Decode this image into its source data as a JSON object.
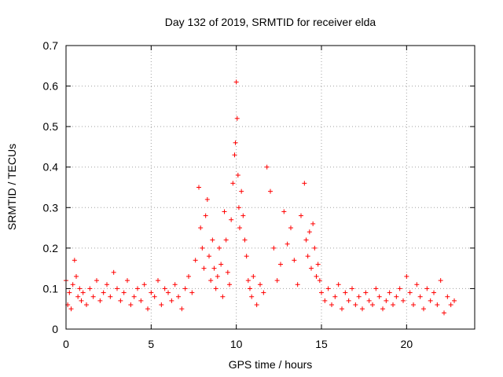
{
  "chart_data": {
    "type": "scatter",
    "title": "Day 132 of 2019, SRMTID for receiver elda",
    "xlabel": "GPS time / hours",
    "ylabel": "SRMTID / TECUs",
    "xlim": [
      0,
      24
    ],
    "ylim": [
      0,
      0.7
    ],
    "xticks": [
      0,
      5,
      10,
      15,
      20
    ],
    "yticks": [
      0,
      0.1,
      0.2,
      0.3,
      0.4,
      0.5,
      0.6,
      0.7
    ],
    "xtick_labels": [
      "0",
      "5",
      "10",
      "15",
      "20"
    ],
    "ytick_labels": [
      "0",
      "0.1",
      "0.2",
      "0.3",
      "0.4",
      "0.5",
      "0.6",
      "0.7"
    ],
    "grid": true,
    "marker": "+",
    "color": "#ff0000",
    "series": [
      {
        "name": "SRMTID",
        "x": [
          0.0,
          0.1,
          0.2,
          0.3,
          0.4,
          0.5,
          0.6,
          0.7,
          0.8,
          0.9,
          1.0,
          1.2,
          1.4,
          1.6,
          1.8,
          2.0,
          2.2,
          2.4,
          2.6,
          2.8,
          3.0,
          3.2,
          3.4,
          3.6,
          3.8,
          4.0,
          4.2,
          4.4,
          4.6,
          4.8,
          5.0,
          5.2,
          5.4,
          5.6,
          5.8,
          6.0,
          6.2,
          6.4,
          6.6,
          6.8,
          7.0,
          7.2,
          7.4,
          7.6,
          7.8,
          7.9,
          8.0,
          8.1,
          8.2,
          8.3,
          8.4,
          8.5,
          8.6,
          8.7,
          8.8,
          8.9,
          9.0,
          9.1,
          9.2,
          9.3,
          9.4,
          9.5,
          9.6,
          9.7,
          9.8,
          9.9,
          9.95,
          10.0,
          10.05,
          10.1,
          10.15,
          10.2,
          10.3,
          10.4,
          10.5,
          10.6,
          10.7,
          10.8,
          10.9,
          11.0,
          11.2,
          11.4,
          11.6,
          11.8,
          12.0,
          12.2,
          12.4,
          12.6,
          12.8,
          13.0,
          13.2,
          13.4,
          13.6,
          13.8,
          14.0,
          14.1,
          14.2,
          14.3,
          14.4,
          14.5,
          14.6,
          14.7,
          14.8,
          14.9,
          15.0,
          15.2,
          15.4,
          15.6,
          15.8,
          16.0,
          16.2,
          16.4,
          16.6,
          16.8,
          17.0,
          17.2,
          17.4,
          17.6,
          17.8,
          18.0,
          18.2,
          18.4,
          18.6,
          18.8,
          19.0,
          19.2,
          19.4,
          19.6,
          19.8,
          20.0,
          20.2,
          20.4,
          20.6,
          20.8,
          21.0,
          21.2,
          21.4,
          21.6,
          21.8,
          22.0,
          22.2,
          22.4,
          22.6,
          22.8
        ],
        "y": [
          0.12,
          0.06,
          0.09,
          0.05,
          0.11,
          0.17,
          0.13,
          0.08,
          0.1,
          0.07,
          0.09,
          0.06,
          0.1,
          0.08,
          0.12,
          0.07,
          0.09,
          0.11,
          0.08,
          0.14,
          0.1,
          0.07,
          0.09,
          0.12,
          0.06,
          0.08,
          0.1,
          0.07,
          0.11,
          0.05,
          0.09,
          0.08,
          0.12,
          0.06,
          0.1,
          0.09,
          0.07,
          0.11,
          0.08,
          0.05,
          0.1,
          0.13,
          0.09,
          0.17,
          0.35,
          0.25,
          0.2,
          0.15,
          0.28,
          0.32,
          0.18,
          0.12,
          0.22,
          0.15,
          0.1,
          0.13,
          0.2,
          0.16,
          0.08,
          0.29,
          0.22,
          0.14,
          0.11,
          0.27,
          0.36,
          0.43,
          0.46,
          0.61,
          0.52,
          0.38,
          0.3,
          0.25,
          0.34,
          0.28,
          0.22,
          0.18,
          0.12,
          0.1,
          0.08,
          0.13,
          0.06,
          0.11,
          0.09,
          0.4,
          0.34,
          0.2,
          0.12,
          0.16,
          0.29,
          0.21,
          0.25,
          0.17,
          0.11,
          0.28,
          0.36,
          0.22,
          0.18,
          0.24,
          0.15,
          0.26,
          0.2,
          0.13,
          0.16,
          0.12,
          0.09,
          0.07,
          0.1,
          0.06,
          0.08,
          0.11,
          0.05,
          0.09,
          0.07,
          0.1,
          0.06,
          0.08,
          0.05,
          0.09,
          0.07,
          0.06,
          0.1,
          0.08,
          0.05,
          0.07,
          0.09,
          0.06,
          0.08,
          0.1,
          0.07,
          0.13,
          0.09,
          0.06,
          0.11,
          0.08,
          0.05,
          0.1,
          0.07,
          0.09,
          0.06,
          0.12,
          0.04,
          0.08,
          0.06,
          0.07
        ]
      }
    ]
  }
}
